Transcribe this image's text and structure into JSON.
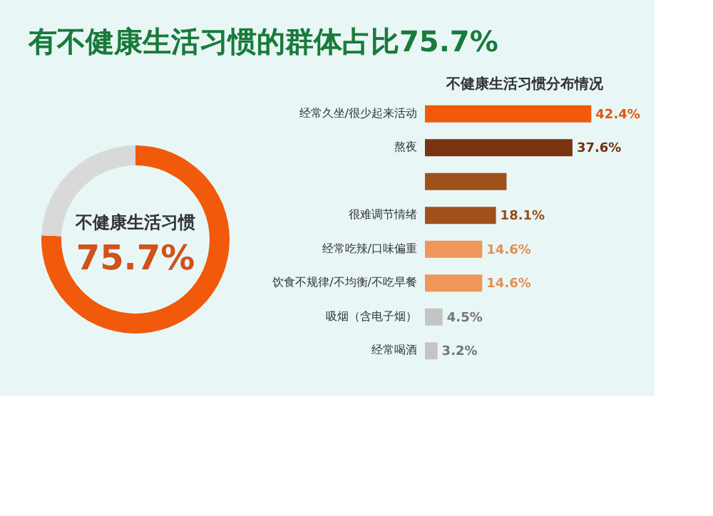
{
  "chart_data": [
    {
      "type": "donut",
      "title": "有不健康生活习惯的群体占比75.7%",
      "categories": [
        null,
        null
      ],
      "values": [
        75.7,
        24.3
      ],
      "colors": [
        "#f05a0a",
        "#d9d9d9"
      ],
      "annotations": [
        "不健康生活习惯",
        "75.7%"
      ]
    },
    {
      "type": "bar",
      "orientation": "horizontal",
      "title": "不健康生活习惯分布情况",
      "categories": [
        "经常久坐/很少起来活动",
        "熬夜",
        null,
        "很难调节情绪",
        "经常吃辣/口味偏重",
        "饮食不规律/不均衡/不吃早餐",
        "吸烟（含电子烟）",
        "经常喝酒"
      ],
      "values": [
        42.4,
        37.6,
        20.8,
        18.1,
        14.6,
        14.6,
        4.5,
        3.2
      ],
      "colors": [
        "#f05a0a",
        "#7a3310",
        "#a0501a",
        "#a0501a",
        "#f0965a",
        "#f0965a",
        "#c4c4c4",
        "#c4c4c4"
      ],
      "value_labels": [
        "42.4%",
        "37.6%",
        null,
        "18.1%",
        "14.6%",
        "14.6%",
        "4.5%",
        "3.2%"
      ]
    }
  ]
}
